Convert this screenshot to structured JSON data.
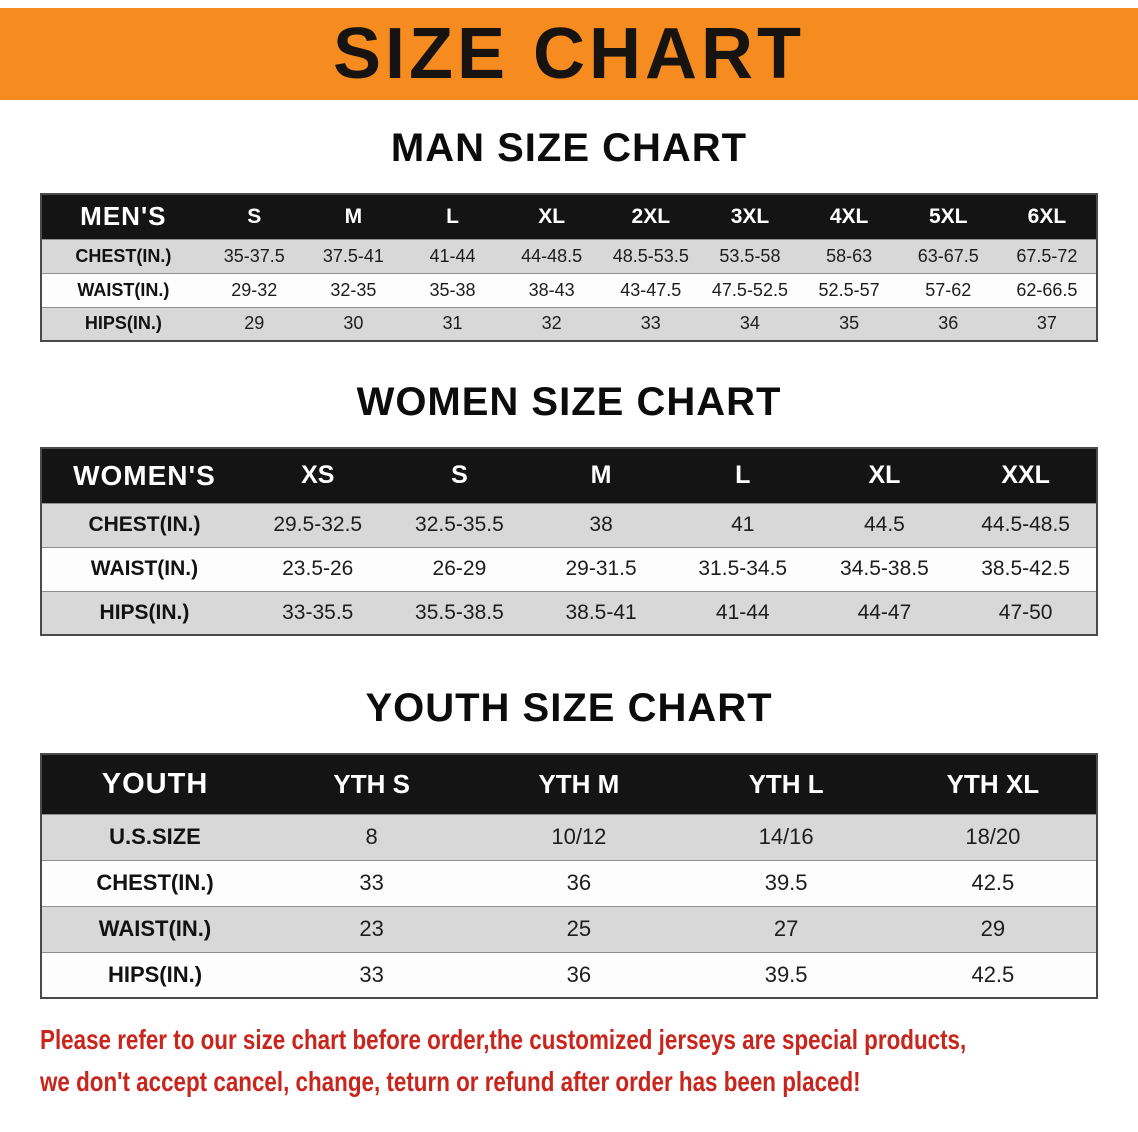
{
  "banner": {
    "title": "SIZE CHART"
  },
  "sections": [
    {
      "id": "men",
      "heading": "MAN SIZE CHART",
      "table": {
        "header": [
          "MEN'S",
          "S",
          "M",
          "L",
          "XL",
          "2XL",
          "3XL",
          "4XL",
          "5XL",
          "6XL"
        ],
        "rows": [
          [
            "CHEST(IN.)",
            "35-37.5",
            "37.5-41",
            "41-44",
            "44-48.5",
            "48.5-53.5",
            "53.5-58",
            "58-63",
            "63-67.5",
            "67.5-72"
          ],
          [
            "WAIST(IN.)",
            "29-32",
            "32-35",
            "35-38",
            "38-43",
            "43-47.5",
            "47.5-52.5",
            "52.5-57",
            "57-62",
            "62-66.5"
          ],
          [
            "HIPS(IN.)",
            "29",
            "30",
            "31",
            "32",
            "33",
            "34",
            "35",
            "36",
            "37"
          ]
        ]
      }
    },
    {
      "id": "women",
      "heading": "WOMEN SIZE CHART",
      "table": {
        "header": [
          "WOMEN'S",
          "XS",
          "S",
          "M",
          "L",
          "XL",
          "XXL"
        ],
        "rows": [
          [
            "CHEST(IN.)",
            "29.5-32.5",
            "32.5-35.5",
            "38",
            "41",
            "44.5",
            "44.5-48.5"
          ],
          [
            "WAIST(IN.)",
            "23.5-26",
            "26-29",
            "29-31.5",
            "31.5-34.5",
            "34.5-38.5",
            "38.5-42.5"
          ],
          [
            "HIPS(IN.)",
            "33-35.5",
            "35.5-38.5",
            "38.5-41",
            "41-44",
            "44-47",
            "47-50"
          ]
        ]
      }
    },
    {
      "id": "youth",
      "heading": "YOUTH SIZE CHART",
      "table": {
        "header": [
          "YOUTH",
          "YTH S",
          "YTH M",
          "YTH L",
          "YTH XL"
        ],
        "rows": [
          [
            "U.S.SIZE",
            "8",
            "10/12",
            "14/16",
            "18/20"
          ],
          [
            "CHEST(IN.)",
            "33",
            "36",
            "39.5",
            "42.5"
          ],
          [
            "WAIST(IN.)",
            "23",
            "25",
            "27",
            "29"
          ],
          [
            "HIPS(IN.)",
            "33",
            "36",
            "39.5",
            "42.5"
          ]
        ]
      }
    }
  ],
  "disclaimer": {
    "line1": "Please refer to our size chart before order,the customized jerseys are special products,",
    "line2": "we don't accept cancel, change, teturn or refund after order has been placed!"
  },
  "colors": {
    "banner_bg": "#f68b1f",
    "header_bg": "#141414",
    "row_shade": "#d8d8d8",
    "disclaimer_red": "#c8251d"
  }
}
